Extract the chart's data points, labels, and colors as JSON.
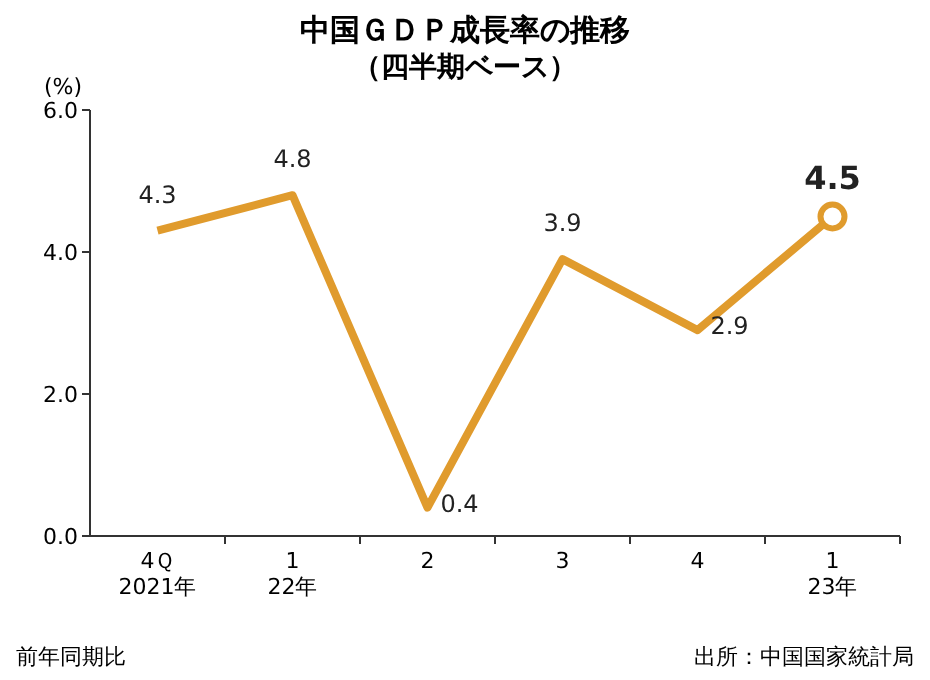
{
  "chart_data": {
    "type": "line",
    "title": "中国ＧＤＰ成長率の推移",
    "subtitle": "（四半期ベース）",
    "ylabel": "(%)",
    "categories": [
      "4Ｑ\n2021年",
      "1\n22年",
      "2",
      "3",
      "4",
      "1\n23年"
    ],
    "series": [
      {
        "color": "#e09b2d",
        "values": [
          4.3,
          4.8,
          0.4,
          3.9,
          2.9,
          4.5
        ],
        "value_labels": [
          "4.3",
          "4.8",
          "0.4",
          "3.9",
          "2.9",
          null
        ]
      },
      {
        "type": "scatter",
        "color": "#e09b2d",
        "x": [
          "1\n23年"
        ],
        "values": [
          4.5
        ],
        "value_labels": [
          "4.5"
        ],
        "marker": "circle"
      }
    ],
    "ylim": [
      0,
      6
    ],
    "yticks": [
      {
        "value": 0,
        "label": "0.0"
      },
      {
        "value": 2,
        "label": "2.0"
      },
      {
        "value": 4,
        "label": "4.0"
      },
      {
        "value": 6,
        "label": "6.0"
      }
    ],
    "grid": false,
    "marker": "none",
    "line_style": "solid",
    "annotations": [
      "前年同期比",
      "出所：中国国家統計局"
    ]
  }
}
